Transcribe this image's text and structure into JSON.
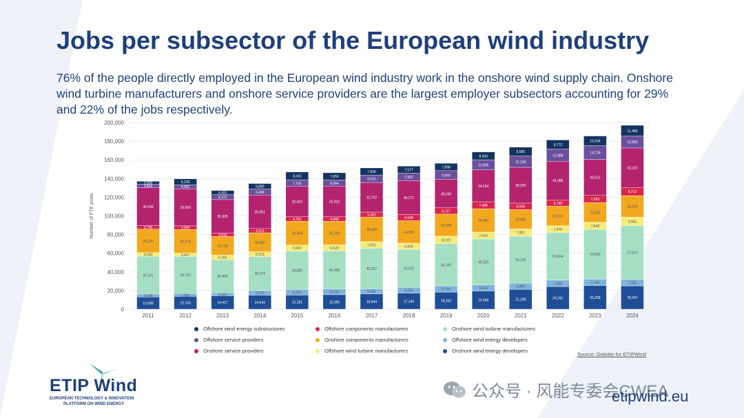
{
  "title": "Jobs per subsector of the European wind industry",
  "subtitle": "76% of the people directly employed in the European wind industry work in the onshore wind supply chain. Onshore wind turbine manufacturers and onshore service providers are the largest employer subsectors accounting for 29% and 22% of the jobs respectively.",
  "source": "Source: Deloitte for ETIPWind",
  "logo": {
    "name": "ETIP Wind",
    "line1": "EUROPEAN TECHNOLOGY & INNOVATION",
    "line2": "PLATFORM ON WIND ENERGY"
  },
  "watermark": "公众号 · 风能专委会CWEA",
  "website": "etipwind.eu",
  "colors": {
    "title": "#1e3f7a",
    "background_shape": "#eef2f8"
  },
  "chart_data": {
    "type": "bar",
    "stacked": true,
    "title": "",
    "xlabel": "",
    "ylabel": "Number of FTE posts",
    "ylim": [
      0,
      200000
    ],
    "yticks": [
      0,
      20000,
      40000,
      60000,
      80000,
      100000,
      120000,
      140000,
      160000,
      180000,
      200000
    ],
    "ytick_labels": [
      "0",
      "20,000",
      "40,000",
      "60,000",
      "80,000",
      "100,000",
      "120,000",
      "140,000",
      "160,000",
      "180,000",
      "200,000"
    ],
    "categories": [
      "2011",
      "2012",
      "2013",
      "2014",
      "2015",
      "2016",
      "2017",
      "2018",
      "2019",
      "2020",
      "2021",
      "2022",
      "2023",
      "2024"
    ],
    "series": [
      {
        "name": "Onshore wind energy developers",
        "color": "#1f4e96",
        "values": [
          13098,
          13743,
          14417,
          14943,
          15181,
          15585,
          16544,
          17343,
          18342,
          19566,
          21248,
          24241,
          25258,
          25047
        ],
        "labels": [
          "13,098",
          "13,743",
          "14,417",
          "14,943",
          "15,181",
          "15,585",
          "16,544",
          "17,343",
          "18,342",
          "19,566",
          "21,248",
          "24,241",
          "25,258",
          "25,047"
        ]
      },
      {
        "name": "Offshore wind energy developers",
        "color": "#7fb3dc",
        "values": [
          3188,
          3029,
          3104,
          5079,
          6150,
          6230,
          5456,
          6204,
          6744,
          6410,
          6809,
          7008,
          7140,
          7095
        ],
        "labels": [
          "3,188",
          "3,029",
          "3,104",
          "5,079",
          "6,150",
          "6,230",
          "5,456",
          "6,204",
          "6,744",
          "6,410",
          "6,809",
          "7,008",
          "7,140",
          "7,095"
        ]
      },
      {
        "name": "Onshore wind turbine manufacturers",
        "color": "#a5dfc3",
        "values": [
          40331,
          39755,
          35455,
          36374,
          40880,
          40668,
          43357,
          40632,
          45160,
          49329,
          50100,
          50804,
          53003,
          57513
        ],
        "labels": [
          "40,331",
          "39,755",
          "35,455",
          "36,374",
          "40,880",
          "40,668",
          "43,357",
          "40,632",
          "45,160",
          "49,329",
          "50,100",
          "50,804",
          "53,003",
          "57,513"
        ]
      },
      {
        "name": "Offshore wind turbine manufacturers",
        "color": "#f3ec7c",
        "values": [
          4060,
          3647,
          5165,
          5133,
          6602,
          6529,
          7001,
          6603,
          8019,
          7418,
          7897,
          7475,
          7849,
          8943
        ],
        "labels": [
          "4,060",
          "3,647",
          "5,165",
          "5,133",
          "6,602",
          "6,529",
          "7,001",
          "6,603",
          "8,019",
          "7,418",
          "7,897",
          "7,475",
          "7,849",
          "8,943"
        ]
      },
      {
        "name": "Onshore components manufacturers",
        "color": "#f2a81e",
        "values": [
          25130,
          25276,
          19735,
          20350,
          25504,
          25159,
          26328,
          24051,
          23668,
          24943,
          20685,
          20910,
          21023,
          23133
        ],
        "labels": [
          "25,130",
          "25,276",
          "19,735",
          "20,350",
          "25,504",
          "25,159",
          "26,328",
          "24,051",
          "23,668",
          "24,943",
          "20,685",
          "20,910",
          "21,023",
          "23,133"
        ]
      },
      {
        "name": "Offshore components manufacturers",
        "color": "#d9254f",
        "values": [
          3746,
          3909,
          3619,
          4613,
          4781,
          4888,
          5383,
          6648,
          6727,
          7486,
          6948,
          6749,
          7650,
          8713
        ],
        "labels": [
          "3,746",
          "3,909",
          "3,619",
          "4,613",
          "4,781",
          "4,888",
          "5,383",
          "6,648",
          "6,727",
          "7,486",
          "6,948",
          "6,749",
          "7,650",
          "8,713"
        ]
      },
      {
        "name": "Onshore service providers",
        "color": "#b3236e",
        "values": [
          40539,
          39660,
          35935,
          35852,
          32432,
          32833,
          31702,
          36271,
          30240,
          34164,
          38300,
          41386,
          38612,
          42323
        ],
        "labels": [
          "40,539",
          "39,660",
          "35,935",
          "35,852",
          "32,432",
          "32,833",
          "31,702",
          "36,271",
          "30,240",
          "34,164",
          "38,300",
          "41,386",
          "38,612",
          "42,323"
        ]
      },
      {
        "name": "Offshore service providers",
        "color": "#6b4f9d",
        "values": [
          3864,
          4382,
          5372,
          6448,
          7152,
          6664,
          8010,
          7962,
          9560,
          10806,
          12139,
          12988,
          14736,
          12806
        ],
        "labels": [
          "3,864",
          "4,382",
          "5,372",
          "6,448",
          "7,152",
          "6,664",
          "8,010",
          "7,962",
          "9,560",
          "10,806",
          "12,139",
          "12,988",
          "14,736",
          "12,806"
        ]
      },
      {
        "name": "Offshore wind energy substructures",
        "color": "#14345f",
        "values": [
          3059,
          6235,
          4432,
          5880,
          8415,
          7650,
          7600,
          7577,
          7898,
          8433,
          9585,
          9772,
          10334,
          11486
        ],
        "labels": [
          "3,059",
          "6,235",
          "4,432",
          "5,880",
          "8,415",
          "7,650",
          "7,600",
          "7,577",
          "7,898",
          "8,433",
          "9,585",
          "9,772",
          "10,334",
          "11,486"
        ]
      }
    ],
    "legend_order": [
      "Offshore wind energy substructures",
      "Offshore components manufacturers",
      "Onshore wind turbine manufacturers",
      "Offshore service providers",
      "Onshore components manufacturers",
      "Offshore wind energy developers",
      "Onshore service providers",
      "Offshore wind turbine manufacturers",
      "Onshore wind energy developers"
    ],
    "legend_position": "bottom",
    "grid": true
  }
}
